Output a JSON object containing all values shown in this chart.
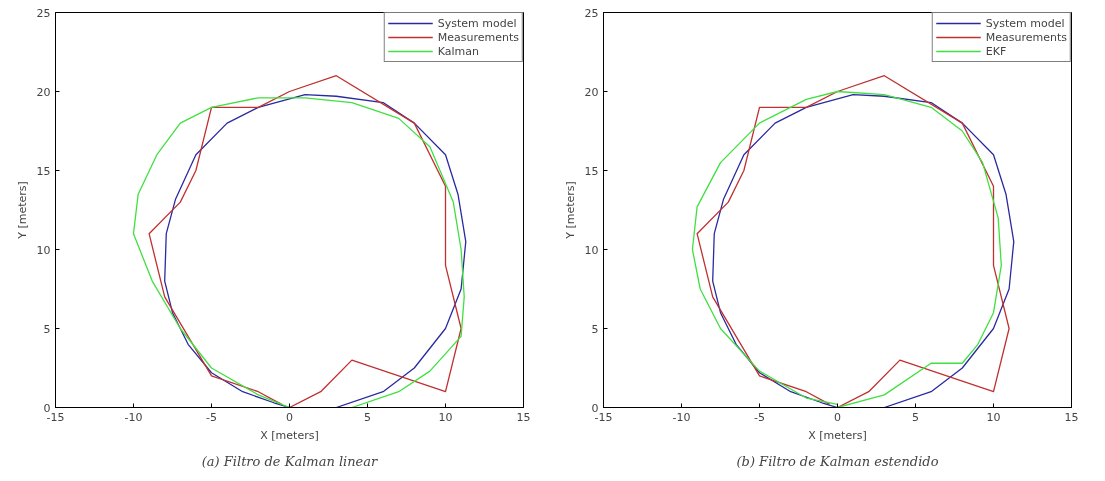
{
  "chart_data": [
    {
      "type": "line",
      "xlabel": "X [meters]",
      "ylabel": "Y [meters]",
      "xlim": [
        -15,
        15
      ],
      "ylim": [
        0,
        25
      ],
      "xticks": [
        -15,
        -10,
        -5,
        0,
        5,
        10,
        15
      ],
      "yticks": [
        0,
        5,
        10,
        15,
        20,
        25
      ],
      "legend": "top right",
      "grid": false,
      "line_style": "solid",
      "annotations": [
        "(a) Filtro de Kalman linear"
      ],
      "series": [
        {
          "name": "System model",
          "color": "#2a2aa0",
          "x": [
            3,
            6,
            8,
            10,
            11,
            11.3,
            10.8,
            10,
            8,
            6,
            3,
            1,
            -2,
            -4,
            -6,
            -7.3,
            -7.9,
            -8,
            -7.5,
            -6.5,
            -5,
            -3,
            -1,
            0
          ],
          "values": [
            0,
            1,
            2.5,
            5,
            7.5,
            10.5,
            13.5,
            16,
            18,
            19.3,
            19.7,
            19.8,
            19,
            18,
            16,
            13.2,
            11,
            8,
            6,
            4,
            2.2,
            1,
            0.3,
            0
          ]
        },
        {
          "name": "Measurements",
          "color": "#c03030",
          "x": [
            0,
            2,
            4,
            10,
            11,
            10,
            10,
            8,
            3,
            0,
            -2,
            -5,
            -6,
            -7,
            -9,
            -8,
            -5,
            -2,
            -0.5
          ],
          "values": [
            0,
            1,
            3,
            1,
            5,
            9,
            14,
            18,
            21,
            20,
            19,
            19,
            15,
            13,
            11,
            7,
            2,
            1,
            0.2
          ]
        },
        {
          "name": "Kalman",
          "color": "#40e040",
          "x": [
            0,
            -2,
            -5,
            -7,
            -8.8,
            -10,
            -9.7,
            -8.5,
            -7,
            -5,
            -2,
            1,
            4,
            7,
            9,
            10.5,
            11,
            11.2,
            11,
            9,
            7,
            4
          ],
          "values": [
            0,
            0.8,
            2.5,
            5,
            8,
            11,
            13.5,
            16,
            18,
            19,
            19.6,
            19.6,
            19.3,
            18.3,
            16.5,
            13,
            10,
            7,
            4.5,
            2.3,
            1,
            0
          ]
        }
      ]
    },
    {
      "type": "line",
      "xlabel": "X [meters]",
      "ylabel": "Y [meters]",
      "xlim": [
        -15,
        15
      ],
      "ylim": [
        0,
        25
      ],
      "xticks": [
        -15,
        -10,
        -5,
        0,
        5,
        10,
        15
      ],
      "yticks": [
        0,
        5,
        10,
        15,
        20,
        25
      ],
      "legend": "top right",
      "grid": false,
      "line_style": "solid",
      "annotations": [
        "(b) Filtro de Kalman estendido"
      ],
      "series": [
        {
          "name": "System model",
          "color": "#2a2aa0",
          "x": [
            3,
            6,
            8,
            10,
            11,
            11.3,
            10.8,
            10,
            8,
            6,
            3,
            1,
            -2,
            -4,
            -6,
            -7.3,
            -7.9,
            -8,
            -7.5,
            -6.5,
            -5,
            -3,
            -1,
            0
          ],
          "values": [
            0,
            1,
            2.5,
            5,
            7.5,
            10.5,
            13.5,
            16,
            18,
            19.3,
            19.7,
            19.8,
            19,
            18,
            16,
            13.2,
            11,
            8,
            6,
            4,
            2.2,
            1,
            0.3,
            0
          ]
        },
        {
          "name": "Measurements",
          "color": "#c03030",
          "x": [
            0,
            2,
            4,
            10,
            11,
            10,
            10,
            8,
            3,
            0,
            -2,
            -5,
            -6,
            -7,
            -9,
            -8,
            -5,
            -2,
            -0.5
          ],
          "values": [
            0,
            1,
            3,
            1,
            5,
            9,
            14,
            18,
            21,
            20,
            19,
            19,
            15,
            13,
            11,
            7,
            2,
            1,
            0.2
          ]
        },
        {
          "name": "EKF",
          "color": "#40e040",
          "x": [
            0,
            -2,
            -5,
            -7.5,
            -8.8,
            -9.3,
            -9,
            -7.5,
            -5,
            -2,
            0,
            3,
            6,
            8,
            9.3,
            10.3,
            10.5,
            10,
            9,
            8,
            6,
            3,
            0
          ],
          "values": [
            0.2,
            0.6,
            2.3,
            5,
            7.5,
            10,
            12.7,
            15.5,
            18,
            19.5,
            20,
            19.8,
            19,
            17.5,
            15.5,
            12,
            9,
            6,
            4,
            2.8,
            2.8,
            0.8,
            0
          ]
        }
      ]
    }
  ]
}
